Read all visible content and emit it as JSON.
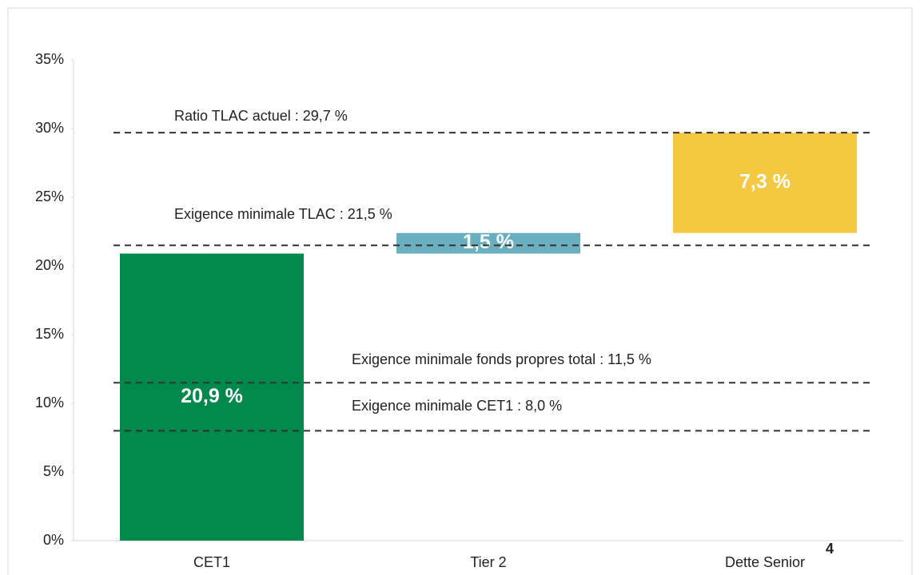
{
  "chart_data": {
    "type": "waterfall",
    "categories": [
      "CET1",
      "Tier 2",
      "Dette Senior"
    ],
    "values": [
      20.9,
      1.5,
      7.3
    ],
    "value_labels": [
      "20,9 %",
      "1,5 %",
      "7,3 %"
    ],
    "colors": [
      "#00894a",
      "#6aafc0",
      "#f5c842"
    ],
    "ylim": [
      0,
      35
    ],
    "yticks": [
      {
        "value": 0,
        "label": "0%"
      },
      {
        "value": 5,
        "label": "5%"
      },
      {
        "value": 10,
        "label": "10%"
      },
      {
        "value": 15,
        "label": "15%"
      },
      {
        "value": 20,
        "label": "20%"
      },
      {
        "value": 25,
        "label": "25%"
      },
      {
        "value": 30,
        "label": "30%"
      },
      {
        "value": 35,
        "label": "35%"
      }
    ],
    "reference_lines": [
      {
        "value": 29.7,
        "label": "Ratio TLAC actuel : 29,7 %"
      },
      {
        "value": 21.5,
        "label": "Exigence minimale TLAC : 21,5 %"
      },
      {
        "value": 11.5,
        "label": "Exigence minimale fonds propres total : 11,5 %"
      },
      {
        "value": 8.0,
        "label": "Exigence minimale CET1 : 8,0 %"
      }
    ],
    "page_number": "4"
  }
}
